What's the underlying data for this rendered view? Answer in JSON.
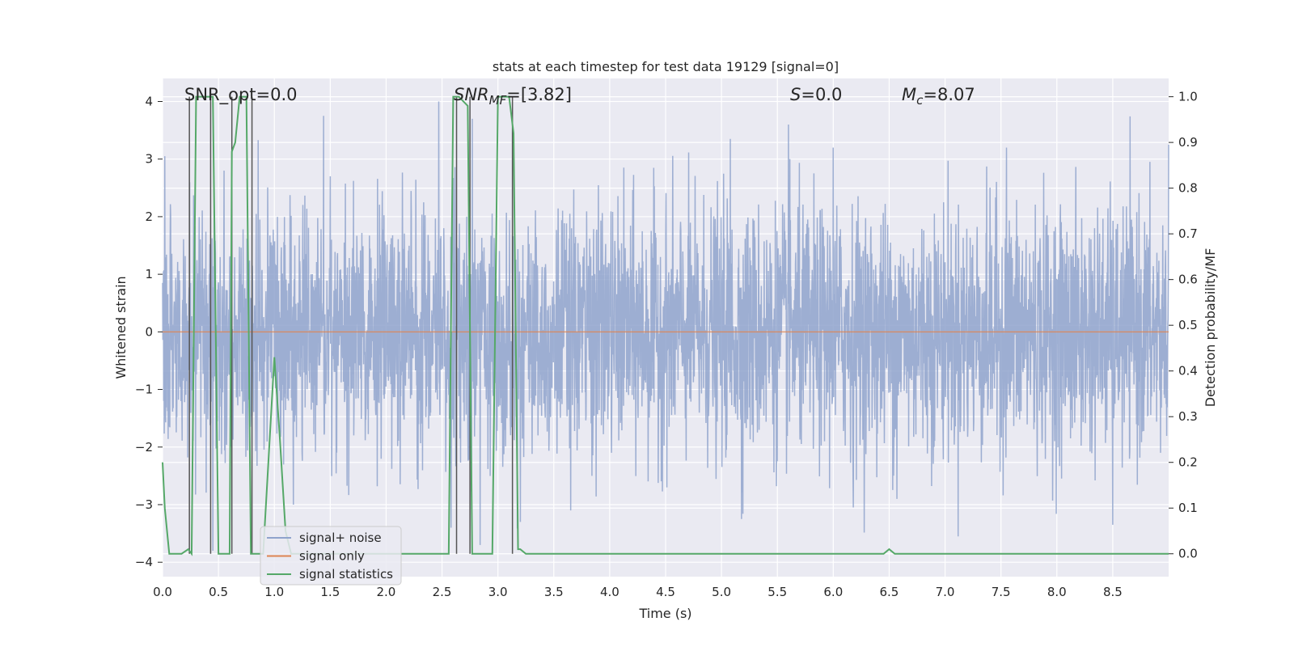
{
  "chart_data": {
    "type": "line",
    "title": "stats at each timestep for test data 19129 [signal=0]",
    "xlabel": "Time (s)",
    "ylabel": "Whitened strain",
    "y2label": "Detection probability/MF",
    "xlim": [
      0.0,
      9.0
    ],
    "ylim": [
      -4.25,
      4.4
    ],
    "y2lim": [
      -0.05,
      1.04
    ],
    "xticks": [
      "0.0",
      "0.5",
      "1.0",
      "1.5",
      "2.0",
      "2.5",
      "3.0",
      "3.5",
      "4.0",
      "4.5",
      "5.0",
      "5.5",
      "6.0",
      "6.5",
      "7.0",
      "7.5",
      "8.0",
      "8.5"
    ],
    "yticks": [
      "−4",
      "−3",
      "−2",
      "−1",
      "0",
      "1",
      "2",
      "3",
      "4"
    ],
    "y2ticks": [
      "0.0",
      "0.1",
      "0.2",
      "0.3",
      "0.4",
      "0.5",
      "0.6",
      "0.7",
      "0.8",
      "0.9",
      "1.0"
    ],
    "grid": true,
    "legend_position": "lower-left",
    "annotations": {
      "snr_opt": "SNR_opt=0.0",
      "snr_mf_var": "SNR",
      "snr_mf_sub": "MF",
      "snr_mf_value": "=[3.82]",
      "s_var": "S",
      "s_value": "=0.0",
      "mc_var": "M",
      "mc_sub": "c",
      "mc_value": "=8.07"
    },
    "series": [
      {
        "name": "signal+ noise",
        "axis": "left",
        "color": "#8fa3cc",
        "noise_sigma": 1.05,
        "noise_seed": 19129,
        "spikes": [
          [
            0.02,
            3.05
          ],
          [
            0.45,
            -3.8
          ],
          [
            0.55,
            2.8
          ],
          [
            1.44,
            3.75
          ],
          [
            1.5,
            2.7
          ],
          [
            2.47,
            4.0
          ],
          [
            2.58,
            -3.4
          ],
          [
            2.72,
            2.0
          ],
          [
            2.77,
            3.7
          ],
          [
            2.84,
            -3.7
          ],
          [
            3.2,
            -3.3
          ],
          [
            3.65,
            -3.1
          ],
          [
            5.08,
            3.35
          ],
          [
            5.18,
            -3.25
          ],
          [
            5.6,
            3.6
          ],
          [
            6.0,
            3.2
          ],
          [
            6.18,
            -3.05
          ],
          [
            7.55,
            3.2
          ],
          [
            8.5,
            -3.35
          ],
          [
            9.0,
            3.25
          ],
          [
            1.17,
            -3.0
          ],
          [
            6.57,
            -2.9
          ]
        ]
      },
      {
        "name": "signal only",
        "axis": "left",
        "color": "#dd8452",
        "values": "zero"
      },
      {
        "name": "signal statistics",
        "axis": "right",
        "color": "#55a868",
        "x": [
          0.0,
          0.02,
          0.06,
          0.1,
          0.17,
          0.23,
          0.26,
          0.3,
          0.42,
          0.45,
          0.5,
          0.56,
          0.6,
          0.62,
          0.65,
          0.69,
          0.72,
          0.75,
          0.79,
          0.81,
          0.86,
          0.9,
          1.0,
          1.05,
          1.1,
          1.15,
          1.2,
          1.5,
          2.0,
          2.5,
          2.56,
          2.6,
          2.65,
          2.73,
          2.77,
          2.79,
          2.85,
          2.95,
          3.0,
          3.05,
          3.1,
          3.14,
          3.18,
          3.2,
          3.25,
          3.5,
          4.0,
          5.0,
          6.0,
          6.4,
          6.45,
          6.5,
          6.55,
          6.6,
          7.0,
          8.0,
          8.5,
          9.0
        ],
        "values": [
          0.2,
          0.1,
          0.0,
          0.0,
          0.0,
          0.01,
          0.0,
          1.0,
          1.0,
          1.0,
          0.0,
          0.0,
          0.0,
          0.88,
          0.9,
          1.0,
          1.0,
          1.0,
          0.0,
          0.0,
          0.0,
          0.0,
          0.43,
          0.25,
          0.05,
          0.0,
          0.0,
          0.0,
          0.0,
          0.0,
          0.0,
          1.0,
          1.0,
          0.98,
          0.0,
          0.0,
          0.0,
          0.0,
          1.0,
          1.0,
          1.0,
          0.92,
          0.01,
          0.01,
          0.0,
          0.0,
          0.0,
          0.0,
          0.0,
          0.0,
          0.0,
          0.01,
          0.0,
          0.0,
          0.0,
          0.0,
          0.0,
          0.0
        ]
      }
    ],
    "event_markers_x": [
      0.24,
      0.43,
      0.62,
      0.8,
      2.63,
      2.75,
      3.13
    ]
  }
}
